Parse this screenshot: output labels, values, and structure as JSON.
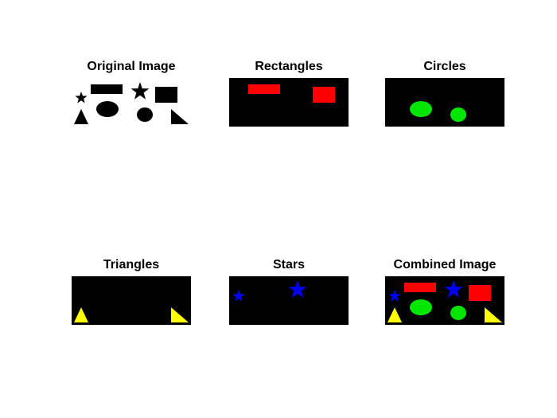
{
  "figure": {
    "background": "#ffffff",
    "panels": [
      {
        "key": "original",
        "title": "Original Image",
        "background": "#ffffff",
        "shapes": [
          {
            "kind": "star",
            "color": "#000000",
            "name": "small-star"
          },
          {
            "kind": "rectangle",
            "color": "#000000",
            "name": "wide-rectangle"
          },
          {
            "kind": "star",
            "color": "#000000",
            "name": "large-star"
          },
          {
            "kind": "rectangle",
            "color": "#000000",
            "name": "square-rectangle"
          },
          {
            "kind": "triangle",
            "color": "#000000",
            "name": "isosceles-triangle"
          },
          {
            "kind": "ellipse",
            "color": "#000000",
            "name": "ellipse"
          },
          {
            "kind": "ellipse",
            "color": "#000000",
            "name": "small-ellipse"
          },
          {
            "kind": "triangle",
            "color": "#000000",
            "name": "right-triangle"
          }
        ]
      },
      {
        "key": "rectangles",
        "title": "Rectangles",
        "background": "#000000",
        "shapes": [
          {
            "kind": "rectangle",
            "color": "#ff0000",
            "name": "wide-rectangle"
          },
          {
            "kind": "rectangle",
            "color": "#ff0000",
            "name": "square-rectangle"
          }
        ]
      },
      {
        "key": "circles",
        "title": "Circles",
        "background": "#000000",
        "shapes": [
          {
            "kind": "ellipse",
            "color": "#00e600",
            "name": "ellipse"
          },
          {
            "kind": "ellipse",
            "color": "#00e600",
            "name": "small-ellipse"
          }
        ]
      },
      {
        "key": "triangles",
        "title": "Triangles",
        "background": "#000000",
        "shapes": [
          {
            "kind": "triangle",
            "color": "#ffff00",
            "name": "isosceles-triangle"
          },
          {
            "kind": "triangle",
            "color": "#ffff00",
            "name": "right-triangle"
          }
        ]
      },
      {
        "key": "stars",
        "title": "Stars",
        "background": "#000000",
        "shapes": [
          {
            "kind": "star",
            "color": "#0000ff",
            "name": "small-star"
          },
          {
            "kind": "star",
            "color": "#0000ff",
            "name": "large-star"
          }
        ]
      },
      {
        "key": "combined",
        "title": "Combined Image",
        "background": "#000000",
        "shapes": [
          {
            "kind": "star",
            "color": "#0000ff",
            "name": "small-star"
          },
          {
            "kind": "rectangle",
            "color": "#ff0000",
            "name": "wide-rectangle"
          },
          {
            "kind": "star",
            "color": "#0000ff",
            "name": "large-star"
          },
          {
            "kind": "rectangle",
            "color": "#ff0000",
            "name": "square-rectangle"
          },
          {
            "kind": "triangle",
            "color": "#ffff00",
            "name": "isosceles-triangle"
          },
          {
            "kind": "ellipse",
            "color": "#00e600",
            "name": "ellipse"
          },
          {
            "kind": "ellipse",
            "color": "#00e600",
            "name": "small-ellipse"
          },
          {
            "kind": "triangle",
            "color": "#ffff00",
            "name": "right-triangle"
          }
        ]
      }
    ]
  }
}
